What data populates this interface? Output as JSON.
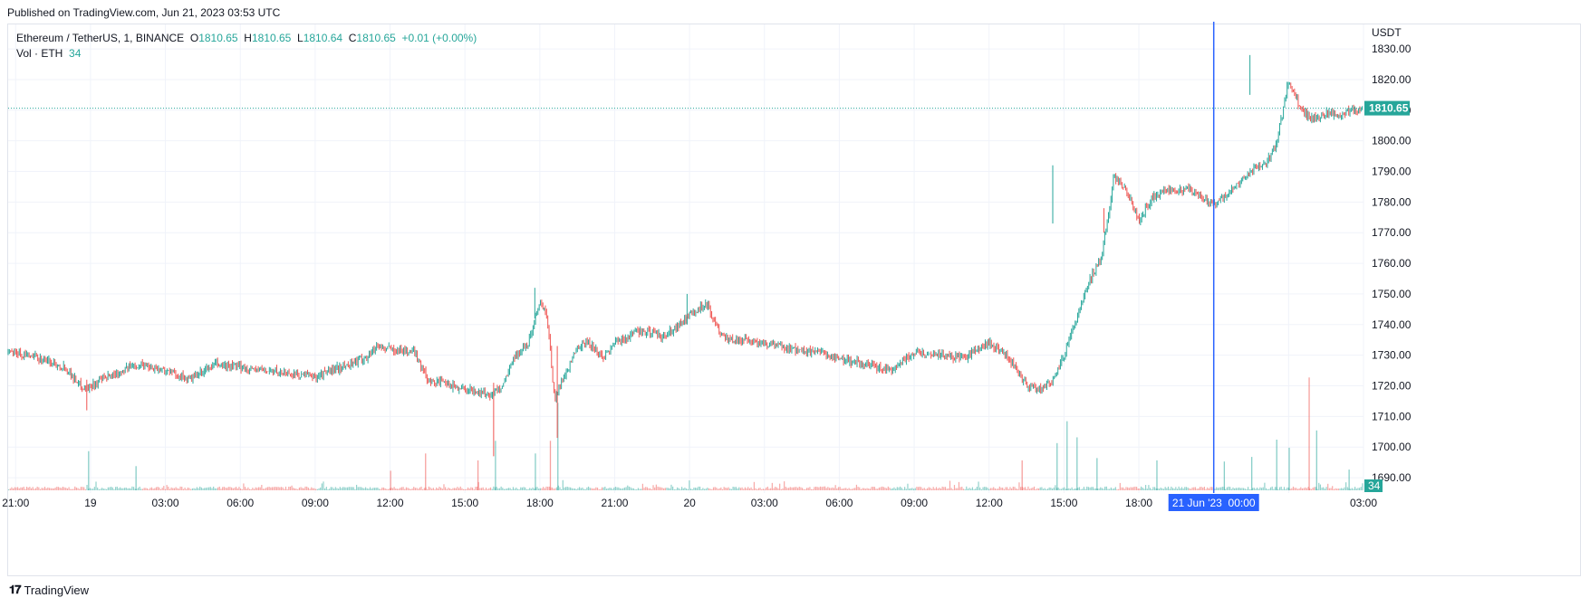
{
  "published": "Published on TradingView.com, Jun 21, 2023 03:53 UTC",
  "legend": {
    "symbol": "Ethereum / TetherUS, 1, BINANCE",
    "o_label": "O",
    "o_value": "1810.65",
    "h_label": "H",
    "h_value": "1810.65",
    "l_label": "L",
    "l_value": "1810.64",
    "c_label": "C",
    "c_value": "1810.65",
    "change": "+0.01 (+0.00%)",
    "vol_label": "Vol · ETH",
    "vol_value": "34"
  },
  "footer": {
    "brand": "TradingView"
  },
  "colors": {
    "up": "#26a69a",
    "down": "#ef5350",
    "crosshair": "#2962ff",
    "grid": "#f0f3fa"
  },
  "chart_data": {
    "type": "candlestick",
    "symbol": "ETHUSDT",
    "interval": "1",
    "ylabel": "USDT",
    "ylim": [
      1685,
      1838
    ],
    "y_ticks": [
      1690,
      1700,
      1710,
      1720,
      1730,
      1740,
      1750,
      1760,
      1770,
      1780,
      1790,
      1800,
      1810,
      1820,
      1830
    ],
    "x_ticks": [
      "21:00",
      "19",
      "03:00",
      "06:00",
      "09:00",
      "12:00",
      "15:00",
      "18:00",
      "21:00",
      "20",
      "03:00",
      "06:00",
      "09:00",
      "12:00",
      "15:00",
      "18:00",
      "21:00",
      "21 Jun '23  00:00",
      "03:00"
    ],
    "x_range_hours": [
      -3.3,
      51.0
    ],
    "crosshair_time": "21 Jun '23  00:00",
    "last_price": "1810.65",
    "last_volume": "34",
    "grid": true,
    "price_path_hours": [
      -3.3,
      -2.0,
      -1.0,
      -0.5,
      -0.2,
      0.5,
      1.0,
      1.5,
      2.0,
      3.0,
      4.0,
      5.0,
      6.0,
      7.0,
      8.0,
      9.0,
      10.0,
      11.0,
      11.5,
      12.0,
      13.0,
      13.5,
      14.0,
      15.0,
      15.5,
      16.0,
      16.5,
      17.0,
      17.5,
      18.0,
      18.3,
      18.6,
      18.9,
      19.2,
      19.5,
      20.0,
      20.5,
      21.0,
      22.0,
      23.0,
      24.0,
      24.7,
      25.2,
      25.5,
      26.0,
      27.0,
      28.0,
      29.0,
      30.0,
      31.0,
      32.0,
      33.0,
      34.0,
      35.0,
      36.0,
      36.5,
      37.0,
      37.5,
      38.0,
      38.5,
      39.0,
      39.5,
      40.0,
      40.5,
      41.0,
      41.5,
      42.0,
      42.5,
      43.0,
      44.0,
      45.0,
      46.0,
      46.5,
      47.0,
      47.5,
      48.0,
      48.5,
      49.0,
      49.5,
      50.0,
      50.5,
      51.0
    ],
    "price_path_values": [
      1731,
      1729,
      1726,
      1721,
      1719,
      1722,
      1724,
      1726,
      1727,
      1725,
      1722,
      1727,
      1726,
      1725,
      1724,
      1723,
      1726,
      1729,
      1733,
      1732,
      1731,
      1722,
      1721,
      1719,
      1718,
      1717,
      1720,
      1730,
      1733,
      1748,
      1742,
      1715,
      1722,
      1727,
      1733,
      1734,
      1729,
      1734,
      1738,
      1736,
      1743,
      1747,
      1737,
      1735,
      1735,
      1734,
      1732,
      1731,
      1729,
      1727,
      1725,
      1731,
      1730,
      1729,
      1734,
      1731,
      1727,
      1720,
      1719,
      1721,
      1730,
      1742,
      1754,
      1762,
      1788,
      1784,
      1774,
      1781,
      1784,
      1784,
      1779,
      1786,
      1790,
      1792,
      1798,
      1820,
      1810,
      1807,
      1809,
      1808,
      1810,
      1810.65
    ],
    "volume_spikes": [
      {
        "h": -0.1,
        "v": 340
      },
      {
        "h": 1.8,
        "v": 210
      },
      {
        "h": 12.0,
        "v": 170
      },
      {
        "h": 13.4,
        "v": 320
      },
      {
        "h": 15.5,
        "v": 260
      },
      {
        "h": 16.2,
        "v": 430
      },
      {
        "h": 17.8,
        "v": 320
      },
      {
        "h": 18.4,
        "v": 430
      },
      {
        "h": 18.7,
        "v": 760
      },
      {
        "h": 37.3,
        "v": 260
      },
      {
        "h": 38.7,
        "v": 410
      },
      {
        "h": 39.1,
        "v": 600
      },
      {
        "h": 39.5,
        "v": 460
      },
      {
        "h": 40.3,
        "v": 280
      },
      {
        "h": 42.7,
        "v": 260
      },
      {
        "h": 45.4,
        "v": 250
      },
      {
        "h": 46.5,
        "v": 290
      },
      {
        "h": 47.5,
        "v": 440
      },
      {
        "h": 48.0,
        "v": 370
      },
      {
        "h": 48.8,
        "v": 980
      },
      {
        "h": 49.1,
        "v": 520
      },
      {
        "h": 50.4,
        "v": 180
      }
    ]
  }
}
